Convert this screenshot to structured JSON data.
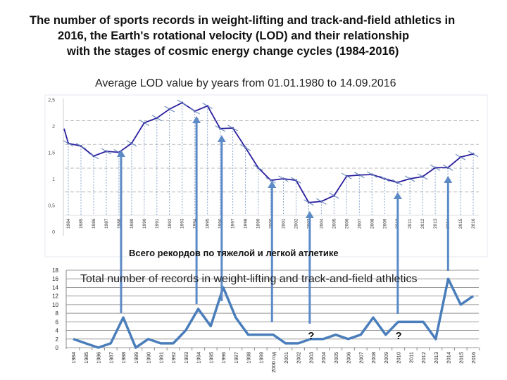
{
  "title_lines": [
    "The number of sports records in weight-lifting and track-and-field athletics in",
    "2016, the Earth's rotational velocity (LOD) and their relationship",
    "with the stages of cosmic energy change cycles (1984-2016)"
  ],
  "chart_data": [
    {
      "type": "line",
      "title": "Average LOD value by years from 01.01.1980 to 14.09.2016",
      "categories": [
        "1984",
        "1985",
        "1986",
        "1987",
        "1988",
        "1989",
        "1990",
        "1991",
        "1992",
        "1993",
        "1994",
        "1995",
        "1996",
        "1997",
        "1998",
        "1999",
        "2000",
        "2001",
        "2002",
        "2003",
        "2004",
        "2005",
        "2006",
        "2007",
        "2008",
        "2009",
        "2010",
        "2011",
        "2012",
        "2013",
        "2014",
        "2015",
        "2016"
      ],
      "values": [
        1.67,
        1.62,
        1.43,
        1.52,
        1.5,
        1.67,
        2.06,
        2.15,
        2.32,
        2.44,
        2.28,
        2.38,
        1.95,
        1.96,
        1.59,
        1.21,
        0.97,
        1.0,
        0.97,
        0.55,
        0.57,
        0.68,
        1.05,
        1.07,
        1.08,
        1.0,
        0.93,
        1.0,
        1.04,
        1.21,
        1.21,
        1.41,
        1.47
      ],
      "start_value": 1.95,
      "yticks": [
        "0",
        "0,5",
        "1",
        "1,5",
        "2",
        "2,5"
      ],
      "ylim": [
        0,
        2.5
      ],
      "line_color": "#2b1f9e",
      "grid": "dashed horizontal, dotted vertical"
    },
    {
      "type": "line",
      "title": "Всего рекордов по тяжелой и легкой атлетике",
      "overlay_label": "Total number of records in weight-lifting and track-and-field athletics",
      "categories": [
        "1984",
        "1985",
        "1986",
        "1987",
        "1988",
        "1989",
        "1990",
        "1991",
        "1992",
        "1993",
        "1994",
        "1995",
        "1996",
        "1997",
        "1998",
        "1999",
        "2000 год",
        "2001",
        "2002",
        "2003",
        "2004",
        "2005",
        "2006",
        "2007",
        "2008",
        "2009",
        "2010",
        "2011",
        "2012",
        "2013",
        "2014",
        "2015",
        "2016"
      ],
      "values": [
        2,
        1,
        0,
        1,
        7,
        0,
        2,
        1,
        1,
        4,
        9,
        5,
        14,
        7,
        3,
        3,
        3,
        1,
        1,
        2,
        2,
        3,
        2,
        3,
        7,
        3,
        6,
        6,
        6,
        2,
        16,
        10,
        12
      ],
      "yticks": [
        "0",
        "2",
        "4",
        "6",
        "8",
        "10",
        "12",
        "14",
        "16",
        "18"
      ],
      "ylim": [
        0,
        18
      ],
      "line_color": "#4a7ebb",
      "grid": "horizontal"
    }
  ],
  "arrows": {
    "years": [
      "1988",
      "1994",
      "1996",
      "2000",
      "2003",
      "2010",
      "2014"
    ],
    "color": "#5b8ac6"
  },
  "question_marks": [
    {
      "year": "2003",
      "text": "?"
    },
    {
      "year": "2010",
      "text": "?"
    }
  ]
}
